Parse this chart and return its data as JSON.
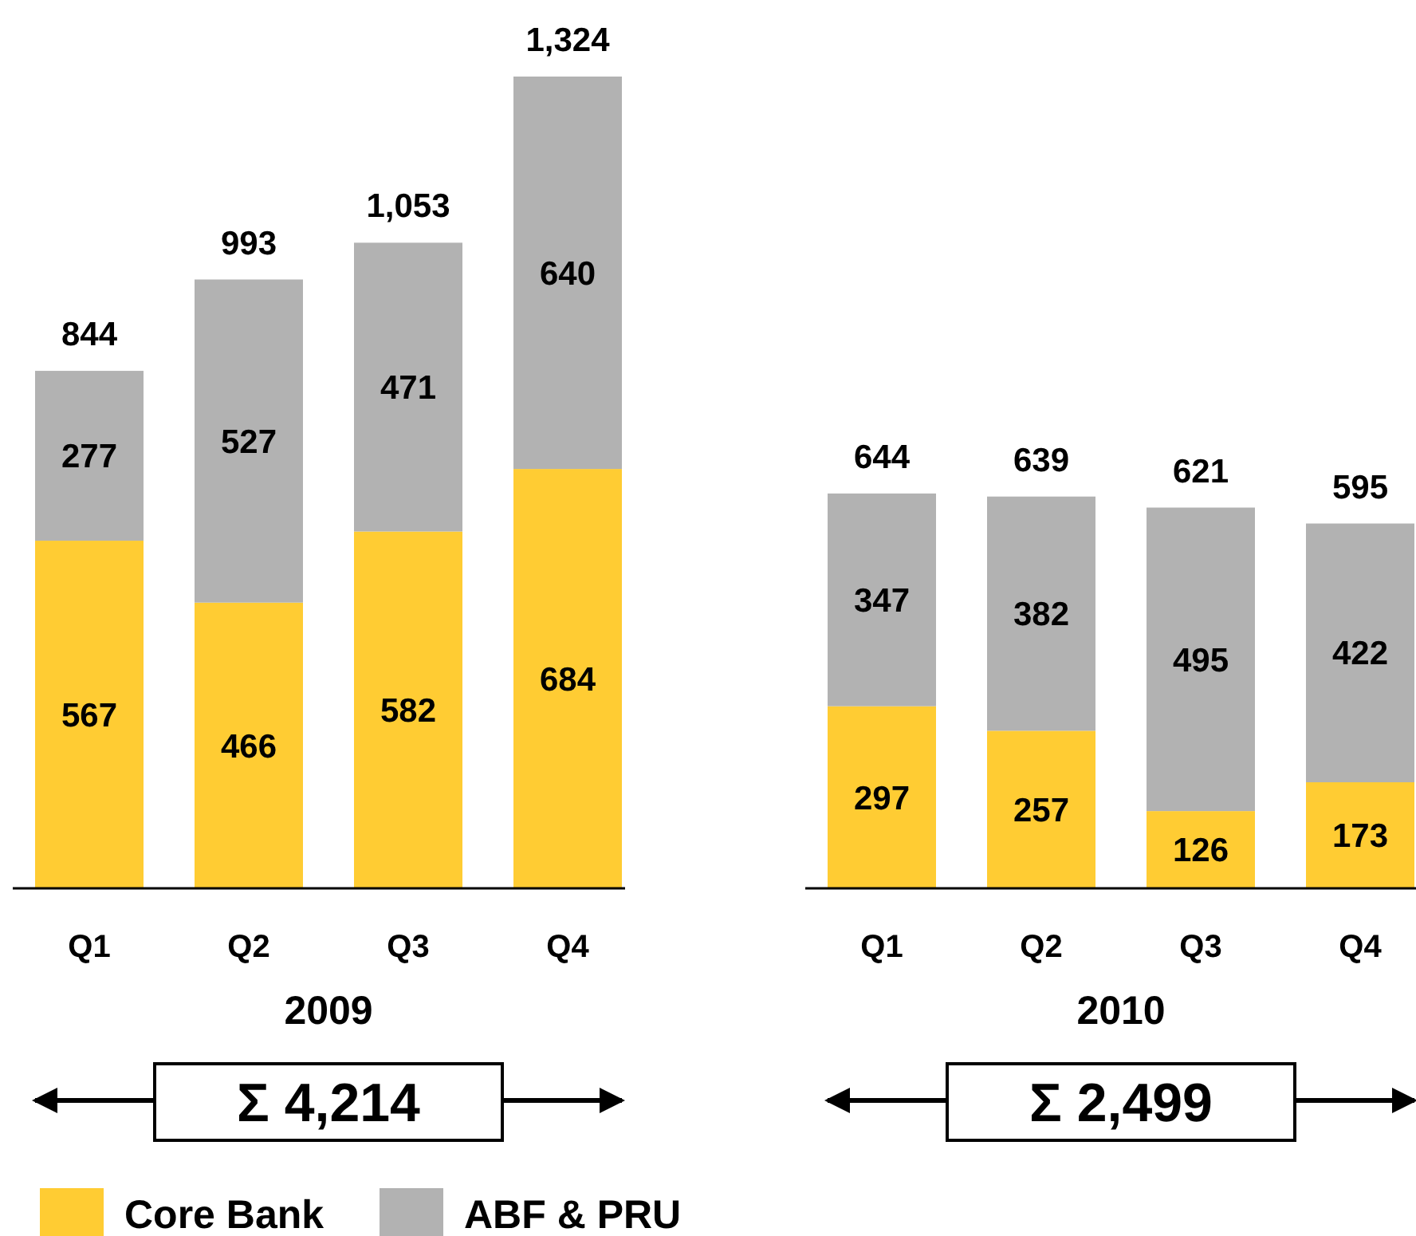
{
  "chart_data": [
    {
      "type": "bar",
      "stacked": true,
      "categories": [
        "Q1",
        "Q2",
        "Q3",
        "Q4"
      ],
      "xlabel": "2009",
      "annotations": [
        "Σ 4,214"
      ],
      "data_labels": true,
      "totals": [
        "844",
        "993",
        "1,053",
        "1,324"
      ],
      "legend": "bottom",
      "series": [
        {
          "name": "Core Bank",
          "color": "#ffcc33",
          "values": [
            567,
            466,
            582,
            684
          ]
        },
        {
          "name": "ABF & PRU",
          "color": "#b2b2b2",
          "values": [
            277,
            527,
            471,
            640
          ]
        }
      ]
    },
    {
      "type": "bar",
      "stacked": true,
      "categories": [
        "Q1",
        "Q2",
        "Q3",
        "Q4"
      ],
      "xlabel": "2010",
      "annotations": [
        "Σ 2,499"
      ],
      "data_labels": true,
      "totals": [
        "644",
        "639",
        "621",
        "595"
      ],
      "series": [
        {
          "color": "#ffcc33",
          "values": [
            297,
            257,
            126,
            173
          ]
        },
        {
          "color": "#b2b2b2",
          "values": [
            347,
            382,
            495,
            422
          ]
        }
      ]
    }
  ]
}
